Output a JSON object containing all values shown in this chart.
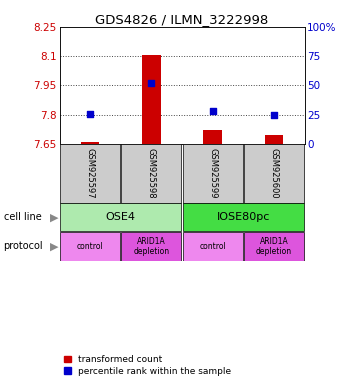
{
  "title": "GDS4826 / ILMN_3222998",
  "samples": [
    "GSM925597",
    "GSM925598",
    "GSM925599",
    "GSM925600"
  ],
  "red_values": [
    7.659,
    8.104,
    7.724,
    7.697
  ],
  "blue_values": [
    7.802,
    7.965,
    7.818,
    7.8
  ],
  "ylim_left": [
    7.65,
    8.25
  ],
  "yticks_left": [
    7.65,
    7.8,
    7.95,
    8.1,
    8.25
  ],
  "yticks_right": [
    0,
    25,
    50,
    75,
    100
  ],
  "cell_line_groups": [
    {
      "label": "OSE4",
      "color": "#aeeaae",
      "span": [
        0,
        2
      ]
    },
    {
      "label": "IOSE80pc",
      "color": "#44dd44",
      "span": [
        2,
        4
      ]
    }
  ],
  "protocol_groups": [
    {
      "label": "control",
      "color": "#ee88ee",
      "span": [
        0,
        1
      ]
    },
    {
      "label": "ARID1A\ndepletion",
      "color": "#dd55dd",
      "span": [
        1,
        2
      ]
    },
    {
      "label": "control",
      "color": "#ee88ee",
      "span": [
        2,
        3
      ]
    },
    {
      "label": "ARID1A\ndepletion",
      "color": "#dd55dd",
      "span": [
        3,
        4
      ]
    }
  ],
  "bar_color": "#cc0000",
  "dot_color": "#0000cc",
  "bar_width": 0.3,
  "dot_size": 20,
  "left_label_color": "#cc0000",
  "right_label_color": "#0000cc",
  "sample_box_color": "#cccccc",
  "legend_red_label": "transformed count",
  "legend_blue_label": "percentile rank within the sample"
}
